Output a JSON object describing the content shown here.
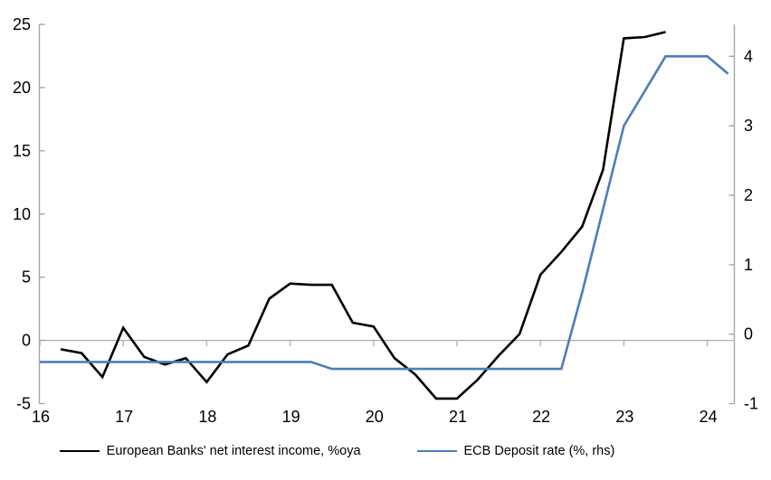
{
  "chart_data": {
    "type": "line",
    "title": "",
    "legend_position": "bottom",
    "grid": false,
    "axis_color": "#a6a6a6",
    "zero_line_color": "#b2b2b2",
    "x_ticks": [
      16,
      17,
      18,
      19,
      20,
      21,
      22,
      23,
      24
    ],
    "left_axis": {
      "ticks": [
        25,
        20,
        15,
        10,
        5,
        0,
        -5
      ],
      "range": [
        -5,
        25
      ]
    },
    "right_axis": {
      "ticks": [
        4,
        3,
        2,
        1,
        0,
        -1
      ],
      "range": [
        -1,
        4.46
      ]
    },
    "series": [
      {
        "name": "European Banks' net interest income, %oya",
        "color": "#000000",
        "axis": "left",
        "x": [
          16.25,
          16.5,
          16.75,
          17.0,
          17.25,
          17.5,
          17.75,
          18.0,
          18.25,
          18.5,
          18.75,
          19.0,
          19.25,
          19.5,
          19.75,
          20.0,
          20.25,
          20.5,
          20.75,
          21.0,
          21.25,
          21.5,
          21.75,
          22.0,
          22.25,
          22.5,
          22.75,
          23.0,
          23.25,
          23.5
        ],
        "values": [
          -0.7,
          -1.0,
          -2.9,
          1.0,
          -1.3,
          -1.9,
          -1.4,
          -3.3,
          -1.1,
          -0.4,
          3.3,
          4.5,
          4.4,
          4.4,
          1.4,
          1.1,
          -1.4,
          -2.7,
          -4.6,
          -4.6,
          -3.1,
          -1.2,
          0.5,
          5.2,
          7.0,
          9.0,
          13.5,
          23.9,
          24.0,
          24.4
        ]
      },
      {
        "name": "ECB Deposit rate (%, rhs)",
        "color": "#4a7ebb",
        "axis": "right",
        "x": [
          16.0,
          16.25,
          16.5,
          16.75,
          17.0,
          17.25,
          17.5,
          17.75,
          18.0,
          18.25,
          18.5,
          18.75,
          19.0,
          19.25,
          19.5,
          19.75,
          20.0,
          20.25,
          20.5,
          20.75,
          21.0,
          21.25,
          21.5,
          21.75,
          22.0,
          22.25,
          22.5,
          22.75,
          23.0,
          23.25,
          23.5,
          23.75,
          24.0,
          24.25
        ],
        "values": [
          -0.4,
          -0.4,
          -0.4,
          -0.4,
          -0.4,
          -0.4,
          -0.4,
          -0.4,
          -0.4,
          -0.4,
          -0.4,
          -0.4,
          -0.4,
          -0.4,
          -0.5,
          -0.5,
          -0.5,
          -0.5,
          -0.5,
          -0.5,
          -0.5,
          -0.5,
          -0.5,
          -0.5,
          -0.5,
          -0.5,
          0.6,
          1.8,
          3.0,
          3.5,
          4.0,
          4.0,
          4.0,
          3.75
        ]
      }
    ]
  },
  "legend": {
    "item1": "European Banks' net interest income, %oya",
    "item2": "ECB Deposit rate (%, rhs)"
  }
}
